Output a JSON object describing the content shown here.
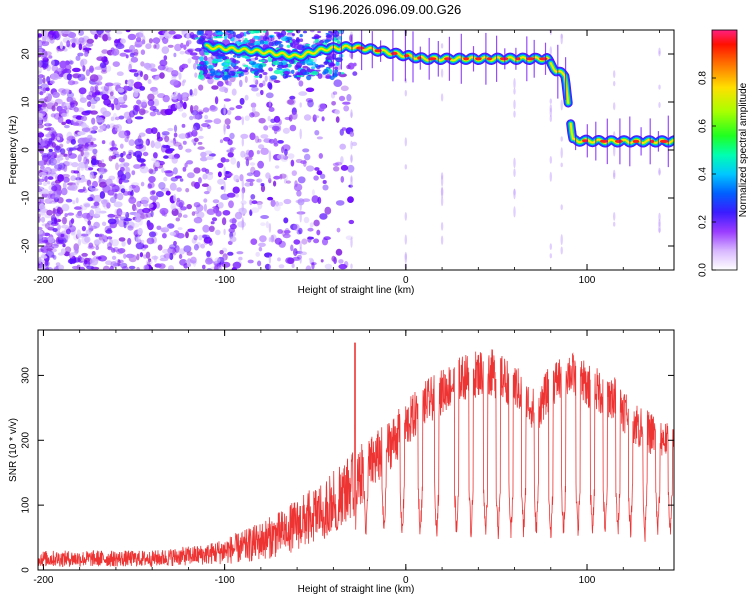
{
  "title": "S196.2026.096.09.00.G26",
  "chart_data": [
    {
      "type": "heatmap",
      "xlabel": "Height of straight line (km)",
      "ylabel": "Frequency (Hz)",
      "xlim": [
        -203,
        148
      ],
      "ylim": [
        -25,
        25
      ],
      "xticks": [
        -200,
        -100,
        0,
        100
      ],
      "yticks": [
        -20,
        -10,
        0,
        10,
        20
      ],
      "colorbar": {
        "label": "Normalized spectral amplitude",
        "range": [
          0,
          1
        ],
        "ticks": [
          "0.0",
          "0.2",
          "0.4",
          "0.6",
          "0.8"
        ]
      },
      "ridge": [
        {
          "x": -110,
          "freq": 21.5
        },
        {
          "x": -80,
          "freq": 20.5
        },
        {
          "x": -60,
          "freq": 19.5
        },
        {
          "x": -45,
          "freq": 21
        },
        {
          "x": -30,
          "freq": 21.5
        },
        {
          "x": -20,
          "freq": 21
        },
        {
          "x": -5,
          "freq": 20
        },
        {
          "x": 10,
          "freq": 19
        },
        {
          "x": 40,
          "freq": 19
        },
        {
          "x": 78,
          "freq": 19
        },
        {
          "x": 83,
          "freq": 16.5
        },
        {
          "x": 88,
          "freq": 15.5
        },
        {
          "x": 92,
          "freq": 2
        },
        {
          "x": 110,
          "freq": 1.8
        },
        {
          "x": 148,
          "freq": 1.8
        }
      ]
    },
    {
      "type": "line",
      "xlabel": "Height of straight line (km)",
      "ylabel": "SNR (10 * v/v)",
      "xlim": [
        -203,
        148
      ],
      "ylim": [
        0,
        370
      ],
      "xticks": [
        -200,
        -100,
        0,
        100
      ],
      "yticks": [
        0,
        100,
        200,
        300
      ],
      "color": "#ee3333",
      "envelope": [
        {
          "x": -203,
          "upper": 30,
          "lower": 5
        },
        {
          "x": -140,
          "upper": 30,
          "lower": 5
        },
        {
          "x": -110,
          "upper": 40,
          "lower": 8
        },
        {
          "x": -90,
          "upper": 60,
          "lower": 10
        },
        {
          "x": -70,
          "upper": 90,
          "lower": 20
        },
        {
          "x": -50,
          "upper": 130,
          "lower": 40
        },
        {
          "x": -30,
          "upper": 180,
          "lower": 80
        },
        {
          "x": -10,
          "upper": 230,
          "lower": 150
        },
        {
          "x": 10,
          "upper": 290,
          "lower": 220
        },
        {
          "x": 30,
          "upper": 330,
          "lower": 260
        },
        {
          "x": 45,
          "upper": 345,
          "lower": 270
        },
        {
          "x": 60,
          "upper": 320,
          "lower": 250
        },
        {
          "x": 72,
          "upper": 275,
          "lower": 210
        },
        {
          "x": 80,
          "upper": 320,
          "lower": 250
        },
        {
          "x": 90,
          "upper": 340,
          "lower": 270
        },
        {
          "x": 100,
          "upper": 320,
          "lower": 250
        },
        {
          "x": 115,
          "upper": 300,
          "lower": 230
        },
        {
          "x": 130,
          "upper": 255,
          "lower": 180
        },
        {
          "x": 148,
          "upper": 220,
          "lower": 170
        }
      ],
      "dropouts": [
        -65,
        -52,
        -45,
        -38,
        -28,
        -22,
        -12,
        -2,
        8,
        17,
        28,
        36,
        44,
        51,
        58,
        65,
        72,
        80,
        87,
        95,
        103,
        110,
        117,
        124,
        132,
        139,
        146
      ],
      "dropout_floor": 40,
      "spikes": [
        {
          "x": -28,
          "y": 350
        }
      ]
    }
  ]
}
